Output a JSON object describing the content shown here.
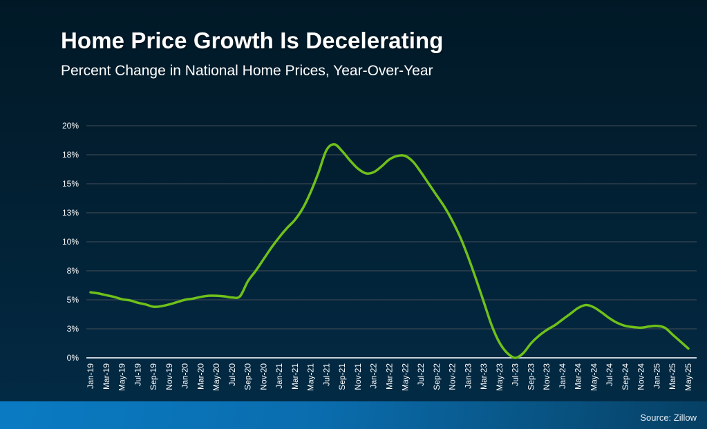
{
  "header": {
    "title": "Home Price Growth Is Decelerating",
    "subtitle": "Percent Change in National Home Prices, Year-Over-Year"
  },
  "footer": {
    "source": "Source: Zillow"
  },
  "colors": {
    "line": "#6fc11a",
    "gridline": "#3a4652",
    "axis": "#c7d3dc",
    "text": "#ffffff"
  },
  "chart_data": {
    "type": "line",
    "title": "Home Price Growth Is Decelerating",
    "subtitle": "Percent Change in National Home Prices, Year-Over-Year",
    "xlabel": "",
    "ylabel": "",
    "ylim": [
      0,
      20
    ],
    "grid": true,
    "legend": "none",
    "y_ticks": [
      0,
      2.5,
      5,
      7.5,
      10,
      12.5,
      15,
      17.5,
      20
    ],
    "y_tick_labels": [
      "0%",
      "3%",
      "5%",
      "8%",
      "10%",
      "13%",
      "15%",
      "18%",
      "20%"
    ],
    "x_tick_labels": [
      "Jan-19",
      "Mar-19",
      "May-19",
      "Jul-19",
      "Sep-19",
      "Nov-19",
      "Jan-20",
      "Mar-20",
      "May-20",
      "Jul-20",
      "Sep-20",
      "Nov-20",
      "Jan-21",
      "Mar-21",
      "May-21",
      "Jul-21",
      "Sep-21",
      "Nov-21",
      "Jan-22",
      "Mar-22",
      "May-22",
      "Jul-22",
      "Sep-22",
      "Nov-22",
      "Jan-23",
      "Mar-23",
      "May-23",
      "Jul-23",
      "Sep-23",
      "Nov-23",
      "Jan-24",
      "Mar-24",
      "May-24",
      "Jul-24",
      "Sep-24",
      "Nov-24",
      "Jan-25",
      "Mar-25",
      "May-25"
    ],
    "x": [
      "Jan-19",
      "Feb-19",
      "Mar-19",
      "Apr-19",
      "May-19",
      "Jun-19",
      "Jul-19",
      "Aug-19",
      "Sep-19",
      "Oct-19",
      "Nov-19",
      "Dec-19",
      "Jan-20",
      "Feb-20",
      "Mar-20",
      "Apr-20",
      "May-20",
      "Jun-20",
      "Jul-20",
      "Aug-20",
      "Sep-20",
      "Oct-20",
      "Nov-20",
      "Dec-20",
      "Jan-21",
      "Feb-21",
      "Mar-21",
      "Apr-21",
      "May-21",
      "Jun-21",
      "Jul-21",
      "Aug-21",
      "Sep-21",
      "Oct-21",
      "Nov-21",
      "Dec-21",
      "Jan-22",
      "Feb-22",
      "Mar-22",
      "Apr-22",
      "May-22",
      "Jun-22",
      "Jul-22",
      "Aug-22",
      "Sep-22",
      "Oct-22",
      "Nov-22",
      "Dec-22",
      "Jan-23",
      "Feb-23",
      "Mar-23",
      "Apr-23",
      "May-23",
      "Jun-23",
      "Jul-23",
      "Aug-23",
      "Sep-23",
      "Oct-23",
      "Nov-23",
      "Dec-23",
      "Jan-24",
      "Feb-24",
      "Mar-24",
      "Apr-24",
      "May-24",
      "Jun-24",
      "Jul-24",
      "Aug-24",
      "Sep-24",
      "Oct-24",
      "Nov-24",
      "Dec-24",
      "Jan-25",
      "Feb-25",
      "Mar-25",
      "Apr-25",
      "May-25"
    ],
    "series": [
      {
        "name": "YoY % change in national home prices",
        "values": [
          5.65,
          5.55,
          5.4,
          5.25,
          5.05,
          4.95,
          4.75,
          4.6,
          4.4,
          4.45,
          4.6,
          4.8,
          5.0,
          5.1,
          5.25,
          5.35,
          5.35,
          5.3,
          5.2,
          5.3,
          6.6,
          7.5,
          8.5,
          9.5,
          10.4,
          11.2,
          11.9,
          12.9,
          14.3,
          16.0,
          17.9,
          18.4,
          17.8,
          17.0,
          16.3,
          15.9,
          16.0,
          16.5,
          17.1,
          17.4,
          17.4,
          16.9,
          16.0,
          15.0,
          14.0,
          13.0,
          11.8,
          10.4,
          8.7,
          6.8,
          4.8,
          2.8,
          1.3,
          0.4,
          0.0,
          0.4,
          1.25,
          1.9,
          2.4,
          2.8,
          3.3,
          3.8,
          4.3,
          4.55,
          4.35,
          3.9,
          3.4,
          3.0,
          2.75,
          2.65,
          2.6,
          2.7,
          2.75,
          2.6,
          2.0,
          1.4,
          0.8
        ]
      }
    ]
  }
}
